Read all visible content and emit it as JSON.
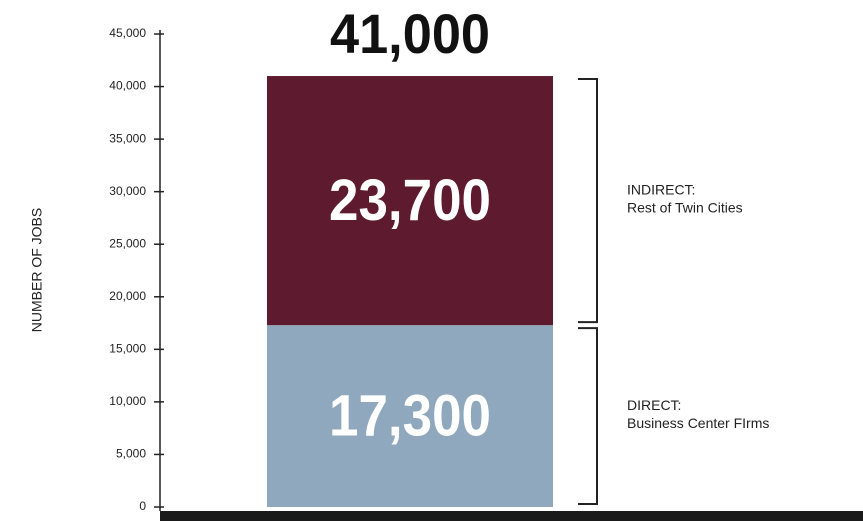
{
  "chart_data": {
    "type": "stacked_bar",
    "y_label": "NUMBER OF JOBS",
    "categories": [
      null
    ],
    "series": [
      {
        "name": "DIRECT:",
        "description": "Business Center FIrms",
        "color": "#8fa8bd",
        "values": [
          17300
        ],
        "value_labels": [
          "17,300"
        ]
      },
      {
        "name": "INDIRECT:",
        "description": "Rest of Twin Cities",
        "color": "#5e1a2e",
        "values": [
          23700
        ],
        "value_labels": [
          "23,700"
        ]
      }
    ],
    "total": {
      "value": 41000,
      "label": "41,000"
    },
    "ylim": [
      0,
      45000
    ],
    "yticks": [
      0,
      {
        "value": 5000,
        "label": "5,000"
      },
      {
        "value": 10000,
        "label": "10,000"
      },
      {
        "value": 15000,
        "label": "15,000"
      },
      {
        "value": 20000,
        "label": "20,000"
      },
      {
        "value": 25000,
        "label": "25,000"
      },
      {
        "value": 30000,
        "label": "30,000"
      },
      {
        "value": 35000,
        "label": "35,000"
      },
      {
        "value": 40000,
        "label": "40,000"
      },
      {
        "value": 45000,
        "label": "45,000"
      }
    ],
    "grid": false
  }
}
